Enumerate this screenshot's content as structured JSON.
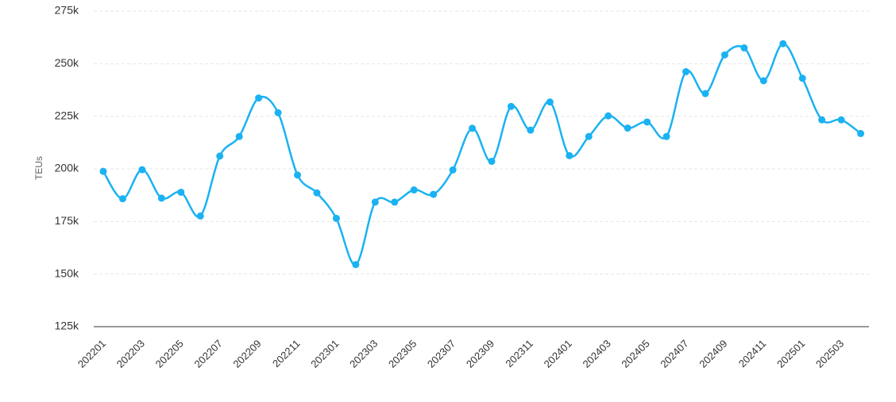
{
  "chart_data": {
    "type": "line",
    "title": "",
    "xlabel": "",
    "ylabel": "TEUs",
    "ylim": [
      125000,
      275000
    ],
    "yticks": [
      {
        "value": 125000,
        "label": "125k"
      },
      {
        "value": 150000,
        "label": "150k"
      },
      {
        "value": 175000,
        "label": "175k"
      },
      {
        "value": 200000,
        "label": "200k"
      },
      {
        "value": 225000,
        "label": "225k"
      },
      {
        "value": 250000,
        "label": "250k"
      },
      {
        "value": 275000,
        "label": "275k"
      }
    ],
    "xtick_labels": [
      "202201",
      "202203",
      "202205",
      "202207",
      "202209",
      "202211",
      "202301",
      "202303",
      "202305",
      "202307",
      "202309",
      "202311",
      "202401",
      "202403",
      "202405",
      "202407",
      "202409",
      "202411",
      "202501",
      "202503"
    ],
    "grid": true,
    "color": "#1ab2f2",
    "x": [
      "202201",
      "202202",
      "202203",
      "202204",
      "202205",
      "202206",
      "202207",
      "202208",
      "202209",
      "202210",
      "202211",
      "202212",
      "202301",
      "202302",
      "202303",
      "202304",
      "202305",
      "202306",
      "202307",
      "202308",
      "202309",
      "202310",
      "202311",
      "202312",
      "202401",
      "202402",
      "202403",
      "202404",
      "202405",
      "202406",
      "202407",
      "202408",
      "202409",
      "202410",
      "202411",
      "202412",
      "202501",
      "202502",
      "202503",
      "202504"
    ],
    "series": [
      {
        "values": [
          198800,
          185800,
          199600,
          186100,
          188900,
          177600,
          206100,
          215400,
          233700,
          226700,
          197100,
          188600,
          176500,
          154500,
          184200,
          184200,
          190000,
          187900,
          199500,
          219300,
          203600,
          229700,
          218400,
          231800,
          206300,
          215400,
          225200,
          219400,
          222300,
          215400,
          246200,
          235800,
          254200,
          257500,
          241900,
          259500,
          243100,
          223300,
          223300,
          216800
        ]
      }
    ]
  }
}
